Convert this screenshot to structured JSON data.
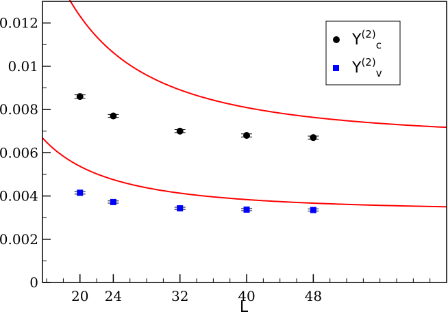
{
  "chart_data": {
    "type": "scatter",
    "xlabel": "L",
    "ylabel": "",
    "xlim": [
      15.5,
      64
    ],
    "ylim": [
      0,
      0.013
    ],
    "xticks": [
      20,
      24,
      32,
      40,
      48
    ],
    "yticks": [
      0,
      0.002,
      0.004,
      0.006,
      0.008,
      0.01,
      0.012
    ],
    "ytick_labels": [
      "0",
      "0.002",
      "0.004",
      "0.006",
      "0.008",
      "0.01",
      "0.012"
    ],
    "grid": false,
    "legend_position": "top-right",
    "series": [
      {
        "name": "Y",
        "superscript": "(2)",
        "subscript": "c",
        "marker": "circle",
        "color": "#000000",
        "x": [
          20,
          24,
          32,
          40,
          48
        ],
        "y": [
          0.0086,
          0.0077,
          0.007,
          0.0068,
          0.0067
        ],
        "yerr": [
          8e-05,
          7e-05,
          7e-05,
          7e-05,
          7e-05
        ]
      },
      {
        "name": "Y",
        "superscript": "(2)",
        "subscript": "v",
        "marker": "square",
        "color": "#0000ff",
        "x": [
          20,
          24,
          32,
          40,
          48
        ],
        "y": [
          0.00415,
          0.00372,
          0.00343,
          0.00337,
          0.00335
        ],
        "yerr": [
          6e-05,
          5e-05,
          5e-05,
          5e-05,
          5e-05
        ]
      }
    ],
    "fits": [
      {
        "color": "#ff0000",
        "a": 0.00654,
        "b": 3.3,
        "c": 1.9
      },
      {
        "color": "#ff0000",
        "a": 0.00327,
        "b": 2.4,
        "c": 1.9
      }
    ]
  }
}
